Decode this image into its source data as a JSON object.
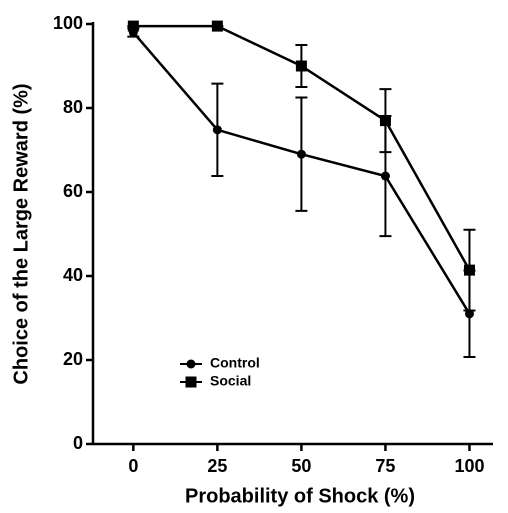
{
  "chart_data": {
    "type": "line",
    "x_label": "Probability of Shock (%)",
    "y_label": "Choice of the Large Reward (%)",
    "x": [
      0,
      25,
      50,
      75,
      100
    ],
    "series": [
      {
        "name": "Control",
        "color": "#000000",
        "marker": "circle",
        "values": [
          98,
          74.8,
          69,
          63.8,
          31
        ],
        "errors": [
          1,
          11,
          13.5,
          14.3,
          10.3
        ]
      },
      {
        "name": "Social",
        "color": "#000000",
        "marker": "square",
        "values": [
          99.5,
          99.5,
          90,
          77,
          41.4
        ],
        "errors": [
          0,
          0,
          5,
          7.5,
          9.6
        ]
      }
    ],
    "xlim": [
      -12,
      107
    ],
    "xticks": [
      0,
      25,
      50,
      75,
      100
    ],
    "ylim": [
      0,
      100
    ],
    "yticks": [
      0,
      20,
      40,
      60,
      80,
      100
    ],
    "grid": false
  }
}
